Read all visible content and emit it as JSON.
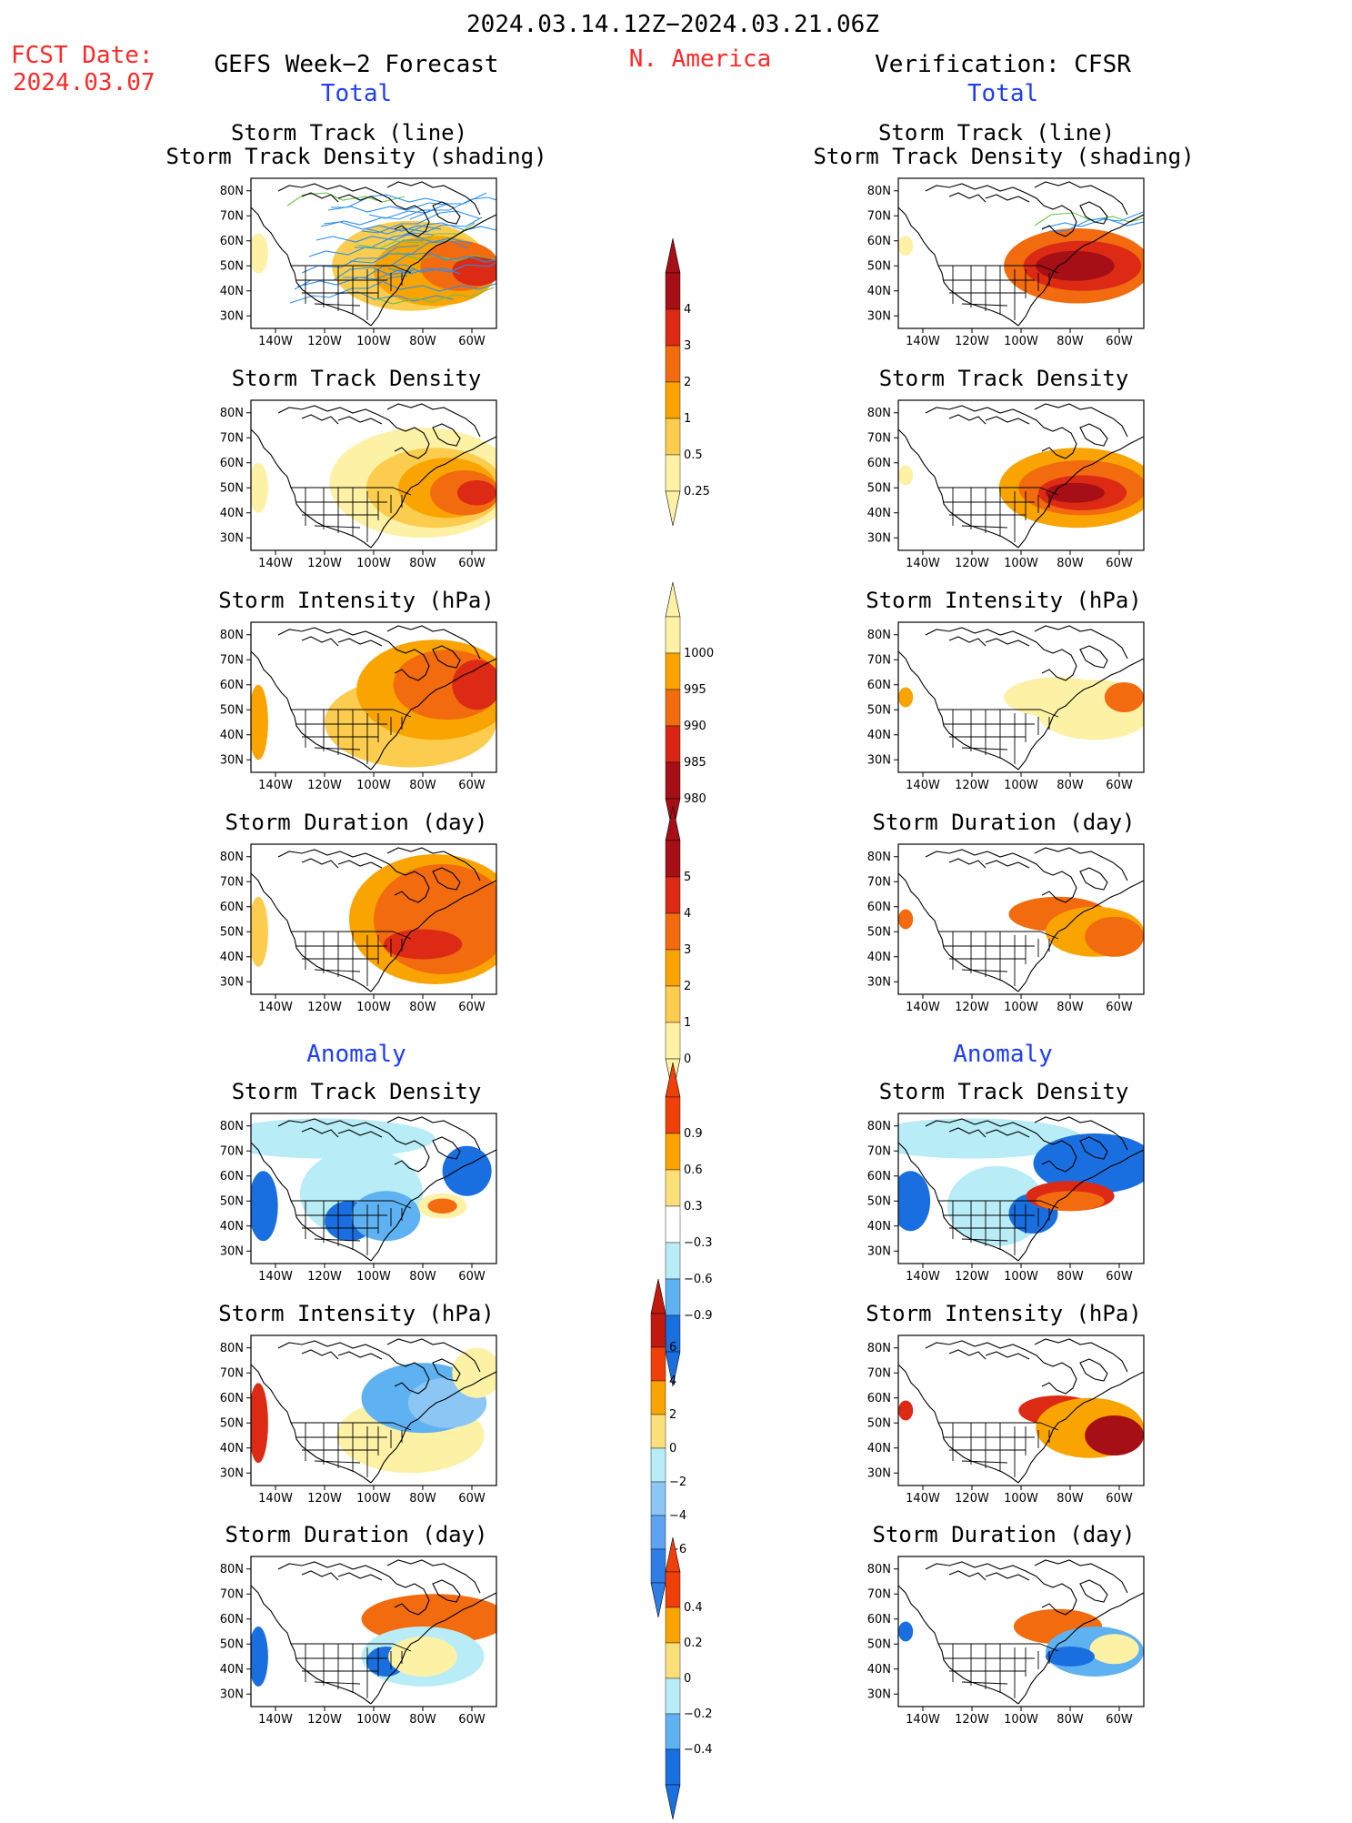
{
  "header": {
    "period": "2024.03.14.12Z−2024.03.21.06Z",
    "fcst_label": "FCST Date:",
    "fcst_date": "2024.03.07",
    "left_title": "GEFS Week−2 Forecast",
    "region": "N. America",
    "right_title": "Verification: CFSR",
    "total_left": "Total",
    "total_right": "Total",
    "anomaly_left": "Anomaly",
    "anomaly_right": "Anomaly"
  },
  "axes": {
    "lat_labels": [
      "80N",
      "70N",
      "60N",
      "50N",
      "40N",
      "30N"
    ],
    "lon_labels": [
      "140W",
      "120W",
      "100W",
      "80W",
      "60W"
    ]
  },
  "panels": {
    "track_title_1": "Storm Track (line)",
    "track_title_2": "Storm Track Density (shading)",
    "density": "Storm Track Density",
    "intensity": "Storm Intensity (hPa)",
    "duration": "Storm Duration (day)"
  },
  "colorbars": {
    "density": {
      "labels": [
        "4",
        "3",
        "2",
        "1",
        "0.5",
        "0.25"
      ],
      "colors": [
        "#a50f15",
        "#dc2a14",
        "#f26b0f",
        "#f9a400",
        "#fbcc4d",
        "#fdf1a6"
      ]
    },
    "intensity": {
      "labels": [
        "1000",
        "995",
        "990",
        "985",
        "980"
      ],
      "colors": [
        "#fdf1a6",
        "#f9a400",
        "#f26b0f",
        "#d92514",
        "#a50f15"
      ]
    },
    "duration": {
      "labels": [
        "5",
        "4",
        "3",
        "2",
        "1",
        "0"
      ],
      "colors": [
        "#a50f15",
        "#dc2a14",
        "#f26b0f",
        "#f9a400",
        "#fbcc4d",
        "#fdf1a6"
      ]
    },
    "anom_density": {
      "labels": [
        "0.9",
        "0.6",
        "0.3",
        "−0.3",
        "−0.6",
        "−0.9"
      ],
      "colors": [
        "#f0400a",
        "#f9a400",
        "#fbe07a",
        "#ffffff",
        "#b8ecf7",
        "#5fb2f2",
        "#1a6fe0"
      ]
    },
    "anom_intensity": {
      "labels": [
        "6",
        "4",
        "2",
        "0",
        "−2",
        "−4",
        "−6"
      ],
      "colors": [
        "#c2190f",
        "#f0400a",
        "#f9a400",
        "#fbe07a",
        "#b8ecf7",
        "#8cc6f5",
        "#5fa2ef",
        "#2f7ee6"
      ]
    },
    "anom_duration": {
      "labels": [
        "0.4",
        "0.2",
        "0",
        "−0.2",
        "−0.4"
      ],
      "colors": [
        "#f0400a",
        "#f9a400",
        "#fbe07a",
        "#b8ecf7",
        "#5fb2f2",
        "#1a6fe0"
      ]
    }
  },
  "colors": {
    "title_red": "#ff2a2a",
    "title_blue": "#1f3cff",
    "track_line_blue": "#2b8ff0",
    "track_line_green": "#6cc24a"
  }
}
